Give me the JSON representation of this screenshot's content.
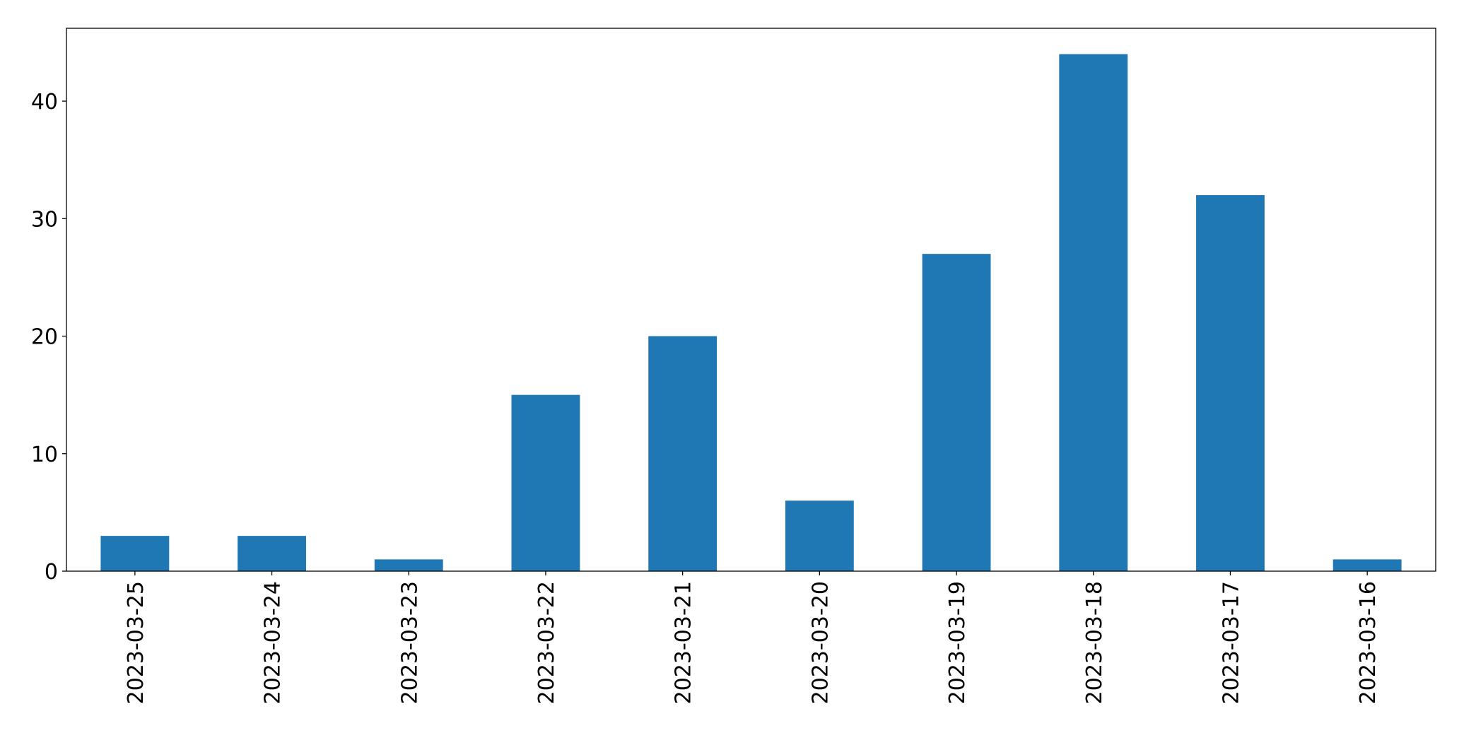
{
  "chart_data": {
    "type": "bar",
    "categories": [
      "2023-03-25",
      "2023-03-24",
      "2023-03-23",
      "2023-03-22",
      "2023-03-21",
      "2023-03-20",
      "2023-03-19",
      "2023-03-18",
      "2023-03-17",
      "2023-03-16"
    ],
    "values": [
      3,
      3,
      1,
      15,
      20,
      6,
      27,
      44,
      32,
      1
    ],
    "color": "#1f77b4",
    "ylim": [
      0,
      46.2
    ],
    "yticks": [
      0,
      10,
      20,
      30,
      40
    ],
    "grid": false
  }
}
